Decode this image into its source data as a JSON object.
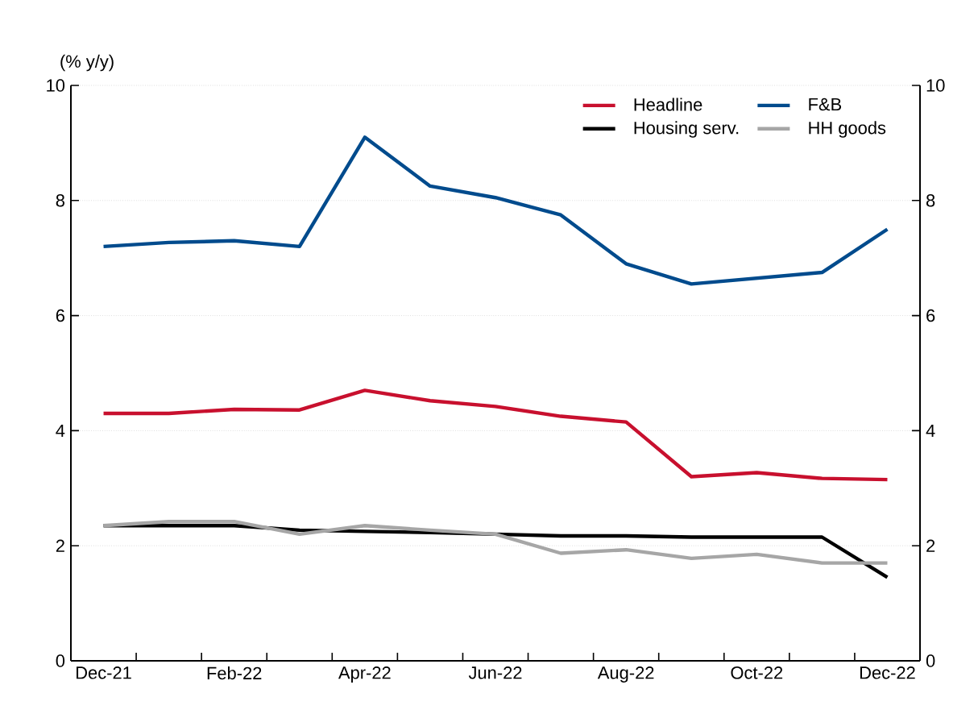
{
  "chart_data": {
    "type": "line",
    "ylabel": "(% y/y)",
    "categories": [
      "Dec-21",
      null,
      "Feb-22",
      null,
      "Apr-22",
      null,
      "Jun-22",
      null,
      "Aug-22",
      null,
      "Oct-22",
      null,
      "Dec-22"
    ],
    "series": [
      {
        "name": "Headline",
        "color": "#c8102e",
        "values": [
          4.3,
          4.3,
          4.37,
          4.36,
          4.7,
          4.52,
          4.42,
          4.25,
          4.15,
          3.2,
          3.27,
          3.17,
          3.15
        ]
      },
      {
        "name": "F&B",
        "color": "#004b8d",
        "values": [
          7.2,
          7.27,
          7.3,
          7.2,
          9.1,
          8.25,
          8.05,
          7.75,
          6.9,
          6.55,
          6.65,
          6.75,
          7.5
        ]
      },
      {
        "name": "Housing serv.",
        "color": "#000000",
        "values": [
          2.35,
          2.35,
          2.35,
          2.27,
          2.25,
          2.23,
          2.2,
          2.17,
          2.17,
          2.15,
          2.15,
          2.15,
          1.45
        ]
      },
      {
        "name": "HH goods",
        "color": "#a6a6a6",
        "values": [
          2.35,
          2.42,
          2.42,
          2.2,
          2.35,
          2.27,
          2.2,
          1.87,
          1.93,
          1.78,
          1.85,
          1.7,
          1.7
        ]
      }
    ],
    "ylim": [
      0,
      10
    ],
    "yticks": [
      0,
      2,
      4,
      6,
      8,
      10
    ],
    "y2lim": [
      0,
      10
    ],
    "y2ticks": [
      0,
      2,
      4,
      6,
      8,
      10
    ],
    "grid": "y",
    "legend": "top right",
    "marker": "none",
    "line_style": "solid"
  }
}
